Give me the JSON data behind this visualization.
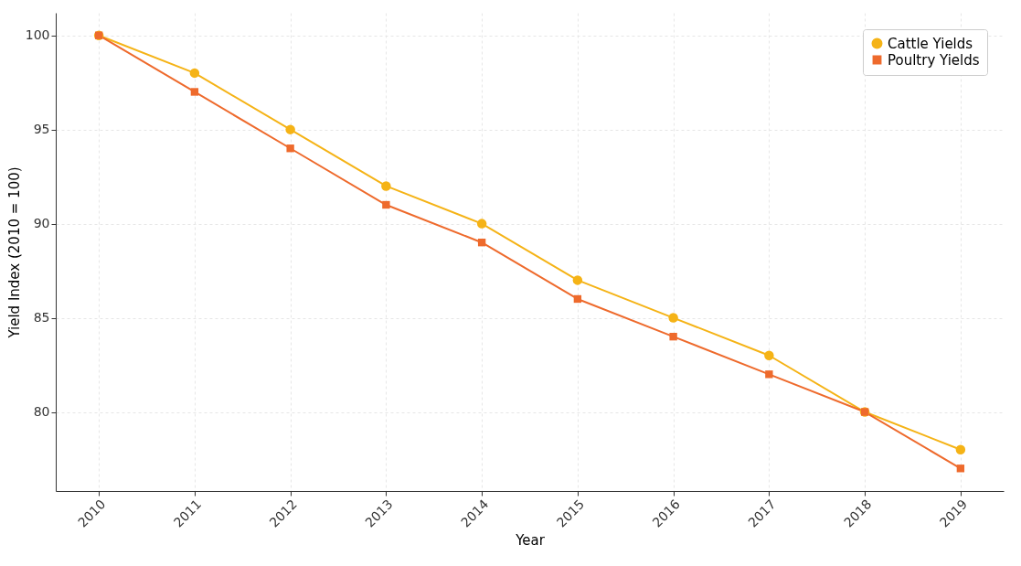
{
  "chart_data": {
    "type": "line",
    "xlabel": "Year",
    "ylabel": "Yield Index (2010 = 100)",
    "x": [
      2010,
      2011,
      2012,
      2013,
      2014,
      2015,
      2016,
      2017,
      2018,
      2019
    ],
    "series": [
      {
        "name": "Cattle Yields",
        "color": "#f5b316",
        "marker": "circle",
        "values": [
          100,
          98,
          95,
          92,
          90,
          87,
          85,
          83,
          80,
          78
        ]
      },
      {
        "name": "Poultry Yields",
        "color": "#ee6a2c",
        "marker": "square",
        "values": [
          100,
          97,
          94,
          91,
          89,
          86,
          84,
          82,
          80,
          77
        ]
      }
    ],
    "xlim": [
      2009.55,
      2019.45
    ],
    "xticks": [
      2010,
      2011,
      2012,
      2013,
      2014,
      2015,
      2016,
      2017,
      2018,
      2019
    ],
    "ylim": [
      75.8,
      101.2
    ],
    "yticks": [
      80,
      85,
      90,
      95,
      100
    ],
    "grid": true,
    "legend": "top right",
    "line_style": "solid"
  }
}
